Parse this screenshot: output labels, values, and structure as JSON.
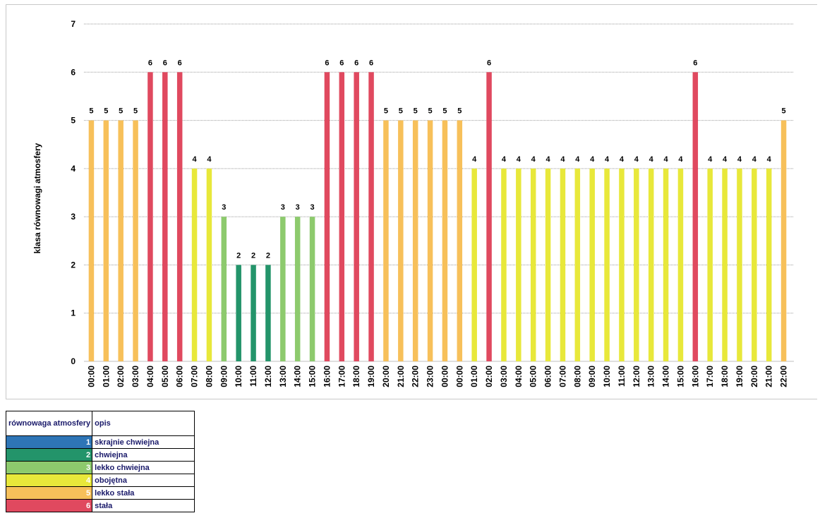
{
  "chart_data": {
    "type": "bar",
    "title": "",
    "xlabel": "",
    "ylabel": "klasa  równowagi  atmosfery",
    "ylim": [
      0,
      7
    ],
    "yticks": [
      0,
      1,
      2,
      3,
      4,
      5,
      6,
      7
    ],
    "grid": true,
    "categories": [
      "00:00",
      "01:00",
      "02:00",
      "03:00",
      "04:00",
      "05:00",
      "06:00",
      "07:00",
      "08:00",
      "09:00",
      "10:00",
      "11:00",
      "12:00",
      "13:00",
      "14:00",
      "15:00",
      "16:00",
      "17:00",
      "18:00",
      "19:00",
      "20:00",
      "21:00",
      "22:00",
      "23:00",
      "00:00",
      "00:00",
      "01:00",
      "02:00",
      "03:00",
      "04:00",
      "05:00",
      "06:00",
      "07:00",
      "08:00",
      "09:00",
      "10:00",
      "11:00",
      "12:00",
      "13:00",
      "14:00",
      "15:00",
      "16:00",
      "17:00",
      "18:00",
      "19:00",
      "20:00",
      "21:00",
      "22:00"
    ],
    "values": [
      5,
      5,
      5,
      5,
      6,
      6,
      6,
      4,
      4,
      3,
      2,
      2,
      2,
      3,
      3,
      3,
      6,
      6,
      6,
      6,
      5,
      5,
      5,
      5,
      5,
      5,
      4,
      6,
      4,
      4,
      4,
      4,
      4,
      4,
      4,
      4,
      4,
      4,
      4,
      4,
      4,
      6,
      4,
      4,
      4,
      4,
      4,
      5
    ],
    "class_colors": {
      "1": "#2e75b6",
      "2": "#23946a",
      "3": "#8dca6d",
      "4": "#e8e83a",
      "5": "#f7c05a",
      "6": "#e0495f"
    }
  },
  "legend": {
    "header_class": "równowaga atmosfery",
    "header_desc": "opis",
    "rows": [
      {
        "num": "1",
        "desc": "skrajnie chwiejna",
        "color": "#2e75b6"
      },
      {
        "num": "2",
        "desc": "chwiejna",
        "color": "#23946a"
      },
      {
        "num": "3",
        "desc": "lekko chwiejna",
        "color": "#8dca6d"
      },
      {
        "num": "4",
        "desc": "obojętna",
        "color": "#e8e83a"
      },
      {
        "num": "5",
        "desc": "lekko stała",
        "color": "#f7c05a"
      },
      {
        "num": "6",
        "desc": "stała",
        "color": "#e0495f"
      }
    ]
  }
}
